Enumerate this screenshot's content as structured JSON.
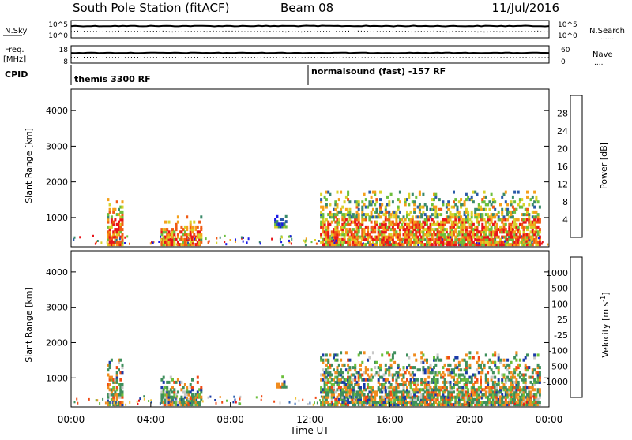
{
  "header": {
    "station": "South Pole Station (fitACF)",
    "beam": "Beam 08",
    "date": "11/Jul/2016"
  },
  "noise_panel": {
    "left_label": "N.Sky",
    "left_ticks": [
      "10^5",
      "10^0"
    ],
    "right_label": "N.Search",
    "right_ticks": [
      "10^5",
      "10^0"
    ],
    "right_legend": "......."
  },
  "freq_panel": {
    "left_label_1": "Freq.",
    "left_label_2": "[MHz]",
    "left_ticks": [
      "18",
      "8"
    ],
    "right_label": "Nave",
    "right_ticks": [
      "60",
      "0"
    ],
    "right_legend": "...."
  },
  "cpid_panel": {
    "label": "CPID",
    "program_1": "themis 3300 RF",
    "program_2": "normalsound (fast) -157 RF"
  },
  "time_axis": {
    "label": "Time UT",
    "ticks": [
      "00:00",
      "04:00",
      "08:00",
      "12:00",
      "16:00",
      "20:00",
      "00:00"
    ]
  },
  "chart_data": [
    {
      "type": "heatmap",
      "title": "",
      "xlabel": "Time UT",
      "ylabel": "Slant Range [km]",
      "xlim": [
        0,
        24
      ],
      "ylim": [
        180,
        4600
      ],
      "yticks": [
        "1000",
        "2000",
        "3000",
        "4000"
      ],
      "colorbar": {
        "label": "Power [dB]",
        "ticks": [
          "28",
          "24",
          "20",
          "16",
          "12",
          "8",
          "4"
        ],
        "range": [
          0,
          30
        ],
        "colors": [
          "#1a1ae6",
          "#2a5aa8",
          "#3a8a6a",
          "#6cbf3c",
          "#d8d22a",
          "#f5a01a",
          "#f05a14",
          "#e8141a"
        ]
      },
      "regions": [
        {
          "t_start": 1.8,
          "t_end": 2.6,
          "r_min": 200,
          "r_max": 1600,
          "level": 0.85
        },
        {
          "t_start": 4.5,
          "t_end": 6.5,
          "r_min": 200,
          "r_max": 1000,
          "level": 0.8
        },
        {
          "t_start": 10.2,
          "t_end": 10.8,
          "r_min": 700,
          "r_max": 1000,
          "level": 0.3
        },
        {
          "t_start": 12.5,
          "t_end": 23.5,
          "r_min": 200,
          "r_max": 1700,
          "level": 0.75
        }
      ]
    },
    {
      "type": "heatmap",
      "title": "",
      "xlabel": "Time UT",
      "ylabel": "Slant Range [km]",
      "xlim": [
        0,
        24
      ],
      "ylim": [
        180,
        4600
      ],
      "yticks": [
        "1000",
        "2000",
        "3000",
        "4000"
      ],
      "colorbar": {
        "label": "Velocity [m s^-1]",
        "ticks": [
          "1000",
          "500",
          "100",
          "25",
          "-25",
          "-100",
          "-500",
          "-1000"
        ],
        "colors": [
          "#1a3aa8",
          "#2f63b0",
          "#3f8f5c",
          "#6cbf3c",
          "#c8c8c8",
          "#f0c23a",
          "#f08c1e",
          "#f04a14",
          "#e8141a"
        ]
      },
      "regions": [
        {
          "t_start": 1.8,
          "t_end": 2.6,
          "r_min": 200,
          "r_max": 1600
        },
        {
          "t_start": 4.5,
          "t_end": 6.5,
          "r_min": 200,
          "r_max": 1000
        },
        {
          "t_start": 10.2,
          "t_end": 10.8,
          "r_min": 700,
          "r_max": 1000
        },
        {
          "t_start": 12.5,
          "t_end": 23.5,
          "r_min": 200,
          "r_max": 1700
        }
      ]
    }
  ]
}
